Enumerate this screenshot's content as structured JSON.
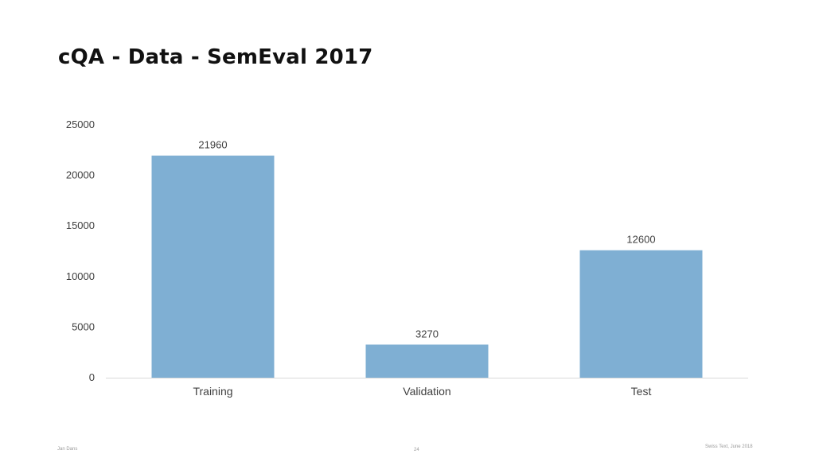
{
  "slide": {
    "title": "cQA - Data - SemEval 2017"
  },
  "footer": {
    "author": "Jan Dans",
    "page_number": "24",
    "event": "Swiss Text, June 2018"
  },
  "chart_data": {
    "type": "bar",
    "categories": [
      "Training",
      "Validation",
      "Test"
    ],
    "values": [
      21960,
      3270,
      12600
    ],
    "data_labels": [
      "21960",
      "3270",
      "12600"
    ],
    "ylim": [
      0,
      25000
    ],
    "yticks": [
      0,
      5000,
      10000,
      15000,
      20000,
      25000
    ],
    "title": "",
    "xlabel": "",
    "ylabel": "",
    "grid": false,
    "legend": "none",
    "bar_color": "#7fafd3",
    "axis_color": "#d9d9d9",
    "label_color": "#404040"
  }
}
